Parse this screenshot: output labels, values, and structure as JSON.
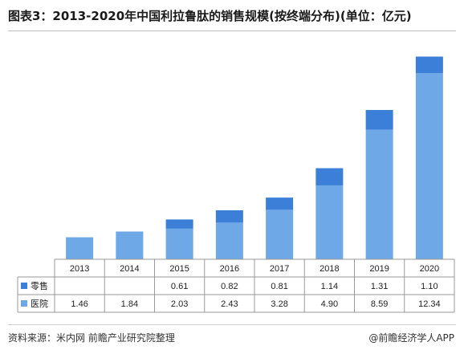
{
  "header": {
    "title": "图表3：2013-2020年中国利拉鲁肽的销售规模(按终端分布)(单位：亿元)"
  },
  "footer": {
    "source": "资料来源：米内网 前瞻产业研究院整理",
    "credit": "@前瞻经济学人APP"
  },
  "chart_data": {
    "type": "bar",
    "stacked": true,
    "categories": [
      "2013",
      "2014",
      "2015",
      "2016",
      "2017",
      "2018",
      "2019",
      "2020"
    ],
    "series": [
      {
        "name": "医院",
        "values": [
          1.46,
          1.84,
          2.03,
          2.43,
          3.28,
          4.9,
          8.59,
          12.34
        ],
        "display": [
          "1.46",
          "1.84",
          "2.03",
          "2.43",
          "3.28",
          "4.90",
          "8.59",
          "12.34"
        ],
        "color": "#6fa8e6"
      },
      {
        "name": "零售",
        "values": [
          null,
          null,
          0.61,
          0.82,
          0.81,
          1.14,
          1.31,
          1.1
        ],
        "display": [
          "",
          "",
          "0.61",
          "0.82",
          "0.81",
          "1.14",
          "1.31",
          "1.10"
        ],
        "color": "#3b7fd8"
      }
    ],
    "table_rows": [
      "零售",
      "医院"
    ],
    "ylim": [
      0,
      14
    ],
    "grid": false,
    "legend": "table"
  }
}
